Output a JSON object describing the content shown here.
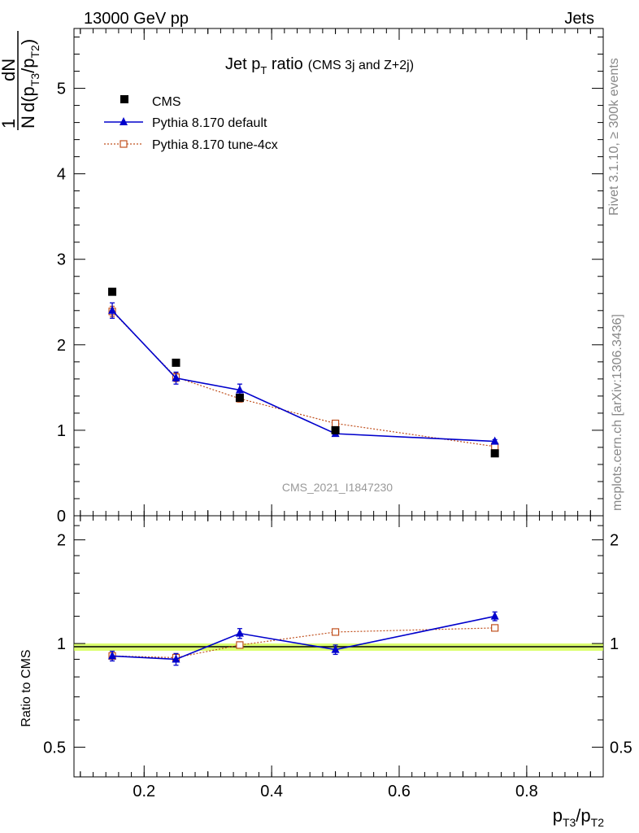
{
  "header": {
    "left": "13000 GeV pp",
    "right": "Jets"
  },
  "side": {
    "rivet": "Rivet 3.1.10, ≥ 300k events",
    "mcplots": "mcplots.cern.ch [arXiv:1306.3436]"
  },
  "watermark": "CMS_2021_I1847230",
  "colors": {
    "cms": "#000000",
    "pythia_default": "#0000cc",
    "pythia_tune": "#c0501e",
    "band": "#ccff33"
  },
  "chart_data": [
    {
      "type": "scatter",
      "panel": "main",
      "title": "Jet pT ratio",
      "title_parts": {
        "main": "Jet p",
        "sub": "T",
        "after": " ratio",
        "small": "(CMS 3j and Z+2j)"
      },
      "ylabel_parts": {
        "one": "1",
        "N": "N",
        "dN": "dN",
        "d": "d(p",
        "s1": "T3",
        "slash": "/p",
        "s2": "T2",
        "close": ")"
      },
      "xlim": [
        0.09,
        0.92
      ],
      "ylim": [
        0,
        5.7
      ],
      "yticks": [
        0,
        1,
        2,
        3,
        4,
        5
      ],
      "ytick_labels": [
        "0",
        "1",
        "2",
        "3",
        "4",
        "5"
      ],
      "legend_position": "top-left",
      "series": [
        {
          "name": "CMS",
          "x": [
            0.15,
            0.25,
            0.35,
            0.5,
            0.75
          ],
          "y": [
            2.62,
            1.79,
            1.38,
            1.0,
            0.73
          ],
          "err": [
            0.02,
            0.02,
            0.02,
            0.02,
            0.02
          ],
          "marker": "filled-square"
        },
        {
          "name": "Pythia 8.170 default",
          "x": [
            0.15,
            0.25,
            0.35,
            0.5,
            0.75
          ],
          "y": [
            2.4,
            1.61,
            1.47,
            0.96,
            0.87
          ],
          "err": [
            0.09,
            0.07,
            0.07,
            0.03,
            0.02
          ],
          "marker": "filled-triangle",
          "line": "solid"
        },
        {
          "name": "Pythia 8.170 tune-4cx",
          "x": [
            0.15,
            0.25,
            0.35,
            0.5,
            0.75
          ],
          "y": [
            2.39,
            1.62,
            1.37,
            1.08,
            0.81
          ],
          "err": [
            0.06,
            0.05,
            0.04,
            0.02,
            0.02
          ],
          "marker": "open-square",
          "line": "dotted"
        }
      ]
    },
    {
      "type": "scatter",
      "panel": "ratio",
      "ylabel": "Ratio to CMS",
      "xlabel_parts": {
        "p": "p",
        "s1": "T3",
        "slash": "/p",
        "s2": "T2"
      },
      "xlim": [
        0.09,
        0.92
      ],
      "ylim": [
        0.41,
        2.35
      ],
      "yscale": "log",
      "yticks": [
        0.5,
        1,
        2
      ],
      "ytick_labels": [
        "0.5",
        "1",
        "2"
      ],
      "xticks": [
        0.2,
        0.4,
        0.6,
        0.8
      ],
      "xtick_labels": [
        "0.2",
        "0.4",
        "0.6",
        "0.8"
      ],
      "series": [
        {
          "name": "Pythia 8.170 default",
          "x": [
            0.15,
            0.25,
            0.35,
            0.5,
            0.75
          ],
          "y": [
            0.92,
            0.9,
            1.07,
            0.96,
            1.2
          ],
          "err": [
            0.03,
            0.035,
            0.035,
            0.03,
            0.035
          ]
        },
        {
          "name": "Pythia 8.170 tune-4cx",
          "x": [
            0.15,
            0.25,
            0.35,
            0.5,
            0.75
          ],
          "y": [
            0.92,
            0.91,
            0.99,
            1.08,
            1.11
          ],
          "err": [
            0.02,
            0.025,
            0.02,
            0.02,
            0.02
          ]
        }
      ]
    }
  ]
}
